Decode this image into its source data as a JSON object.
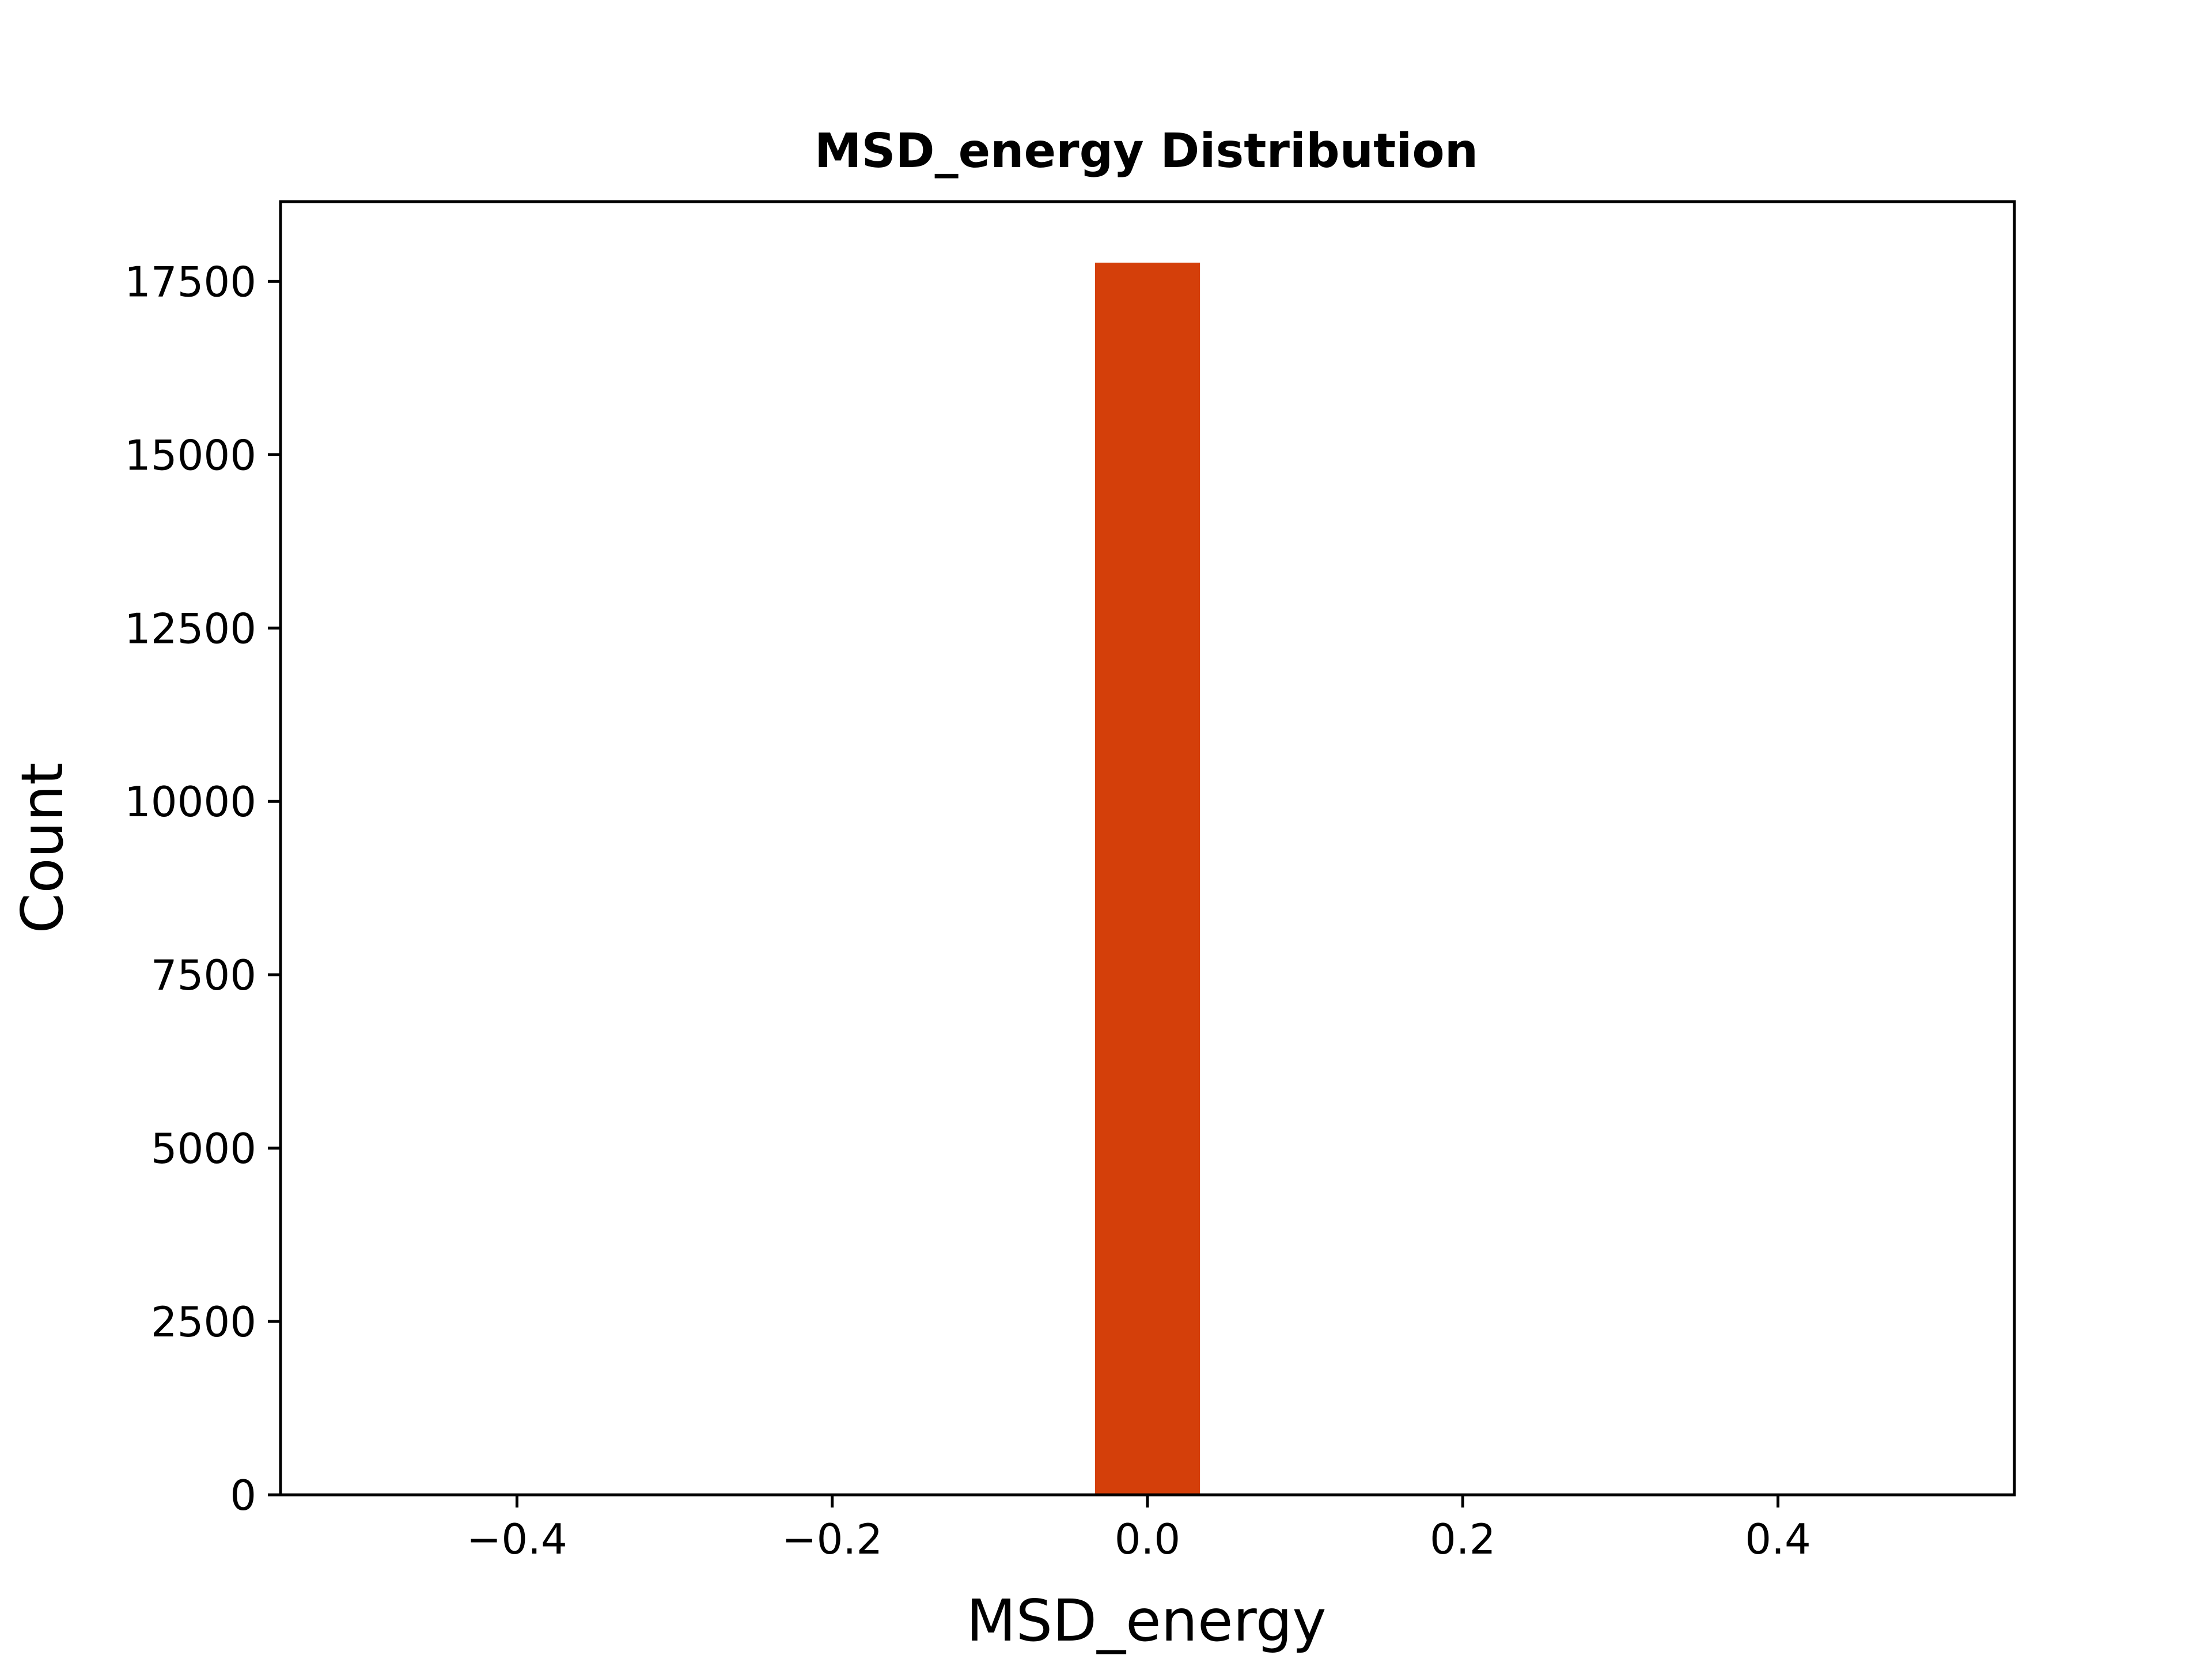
{
  "chart_data": {
    "type": "bar",
    "title": "MSD_energy Distribution",
    "xlabel": "MSD_energy",
    "ylabel": "Count",
    "xlim": [
      -0.55,
      0.55
    ],
    "ylim": [
      0,
      18650
    ],
    "x_ticks": [
      -0.4,
      -0.2,
      0.0,
      0.2,
      0.4
    ],
    "x_tick_labels": [
      "−0.4",
      "−0.2",
      "0.0",
      "0.2",
      "0.4"
    ],
    "y_ticks": [
      0,
      2500,
      5000,
      7500,
      10000,
      12500,
      15000,
      17500
    ],
    "y_tick_labels": [
      "0",
      "2500",
      "5000",
      "7500",
      "10000",
      "12500",
      "15000",
      "17500"
    ],
    "bars": [
      {
        "x_start": -0.0333,
        "x_end": 0.0333,
        "value": 17770
      }
    ],
    "bar_color": "#d43f0a",
    "grid": false,
    "legend": "none"
  }
}
